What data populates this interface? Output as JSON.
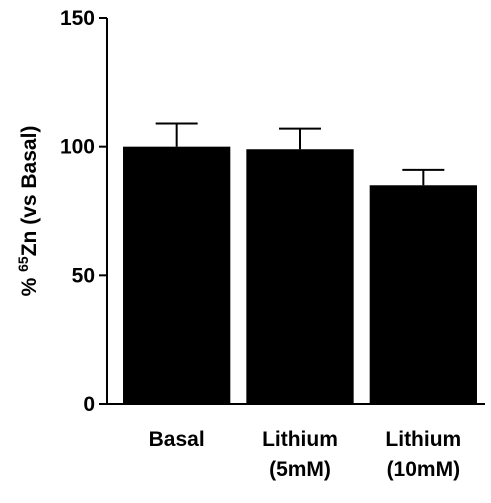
{
  "chart_data": {
    "type": "bar",
    "y_label": {
      "prefix": "%",
      "superscript": "65",
      "main": "Zn (vs Basal)"
    },
    "categories": [
      "Basal",
      "Lithium (5mM)",
      "Lithium (10mM)"
    ],
    "values": [
      100,
      99,
      85
    ],
    "errors": [
      9,
      8,
      6
    ],
    "color": "#000000",
    "ylim": [
      0,
      150
    ],
    "yticks": [
      0,
      50,
      100,
      150
    ],
    "grid": false
  }
}
